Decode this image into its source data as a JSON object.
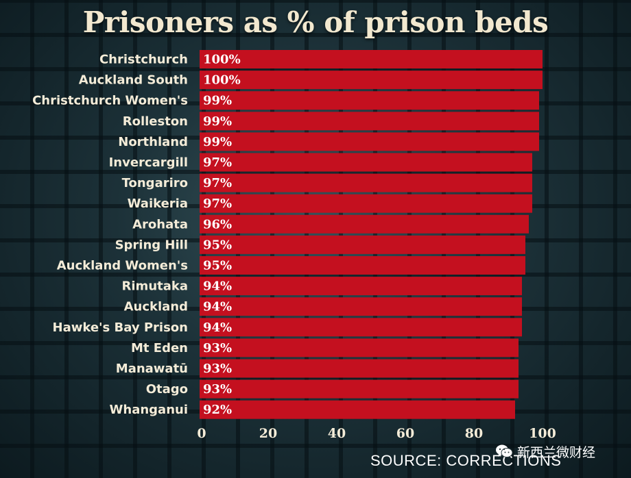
{
  "title": "Prisoners as % of prison beds",
  "source": "SOURCE: CORRECTIONS",
  "watermark": "新西兰微财经",
  "colors": {
    "bar": "#c4101f",
    "background": "#1c3138",
    "title": "#f2e8cf"
  },
  "chart_data": {
    "type": "bar",
    "orientation": "horizontal",
    "title": "Prisoners as % of prison beds",
    "categories": [
      "Christchurch",
      "Auckland South",
      "Christchurch Women's",
      "Rolleston",
      "Northland",
      "Invercargill",
      "Tongariro",
      "Waikeria",
      "Arohata",
      "Spring Hill",
      "Auckland Women's",
      "Rimutaka",
      "Auckland",
      "Hawke's Bay Prison",
      "Mt Eden",
      "Manawatū",
      "Otago",
      "Whanganui"
    ],
    "values": [
      100,
      100,
      99,
      99,
      99,
      97,
      97,
      97,
      96,
      95,
      95,
      94,
      94,
      94,
      93,
      93,
      93,
      92
    ],
    "value_labels": [
      "100%",
      "100%",
      "99%",
      "99%",
      "99%",
      "97%",
      "97%",
      "97%",
      "96%",
      "95%",
      "95%",
      "94%",
      "94%",
      "94%",
      "93%",
      "93%",
      "93%",
      "92%"
    ],
    "xticks": [
      "0",
      "20",
      "40",
      "60",
      "80",
      "100"
    ],
    "xtick_values": [
      0,
      20,
      40,
      60,
      80,
      100
    ],
    "xlim": [
      0,
      100
    ],
    "grid": false,
    "legend": "none"
  }
}
